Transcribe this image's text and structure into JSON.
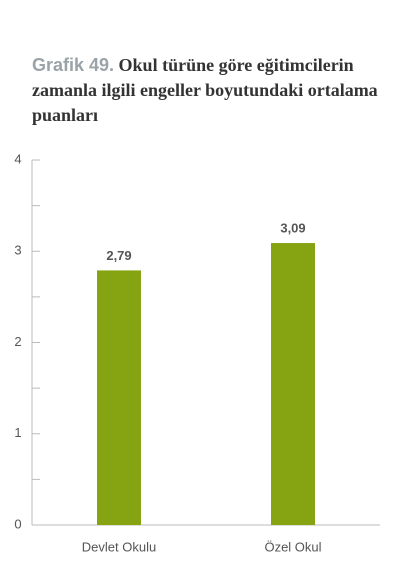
{
  "chart_data": {
    "type": "bar",
    "title_label": "Grafik 49.",
    "title": "Okul türüne göre eğitimcilerin zamanla ilgili engeller boyutundaki ortalama puanları",
    "categories": [
      "Devlet Okulu",
      "Özel Okul"
    ],
    "values": [
      2.79,
      3.09
    ],
    "value_labels": [
      "2,79",
      "3,09"
    ],
    "color": "#86a312",
    "ylim": [
      0,
      4
    ],
    "yticks": [
      0,
      1,
      2,
      3,
      4
    ],
    "yminor_ticks": [
      0.5,
      1.5,
      2.5,
      3.5
    ],
    "grid": false
  }
}
